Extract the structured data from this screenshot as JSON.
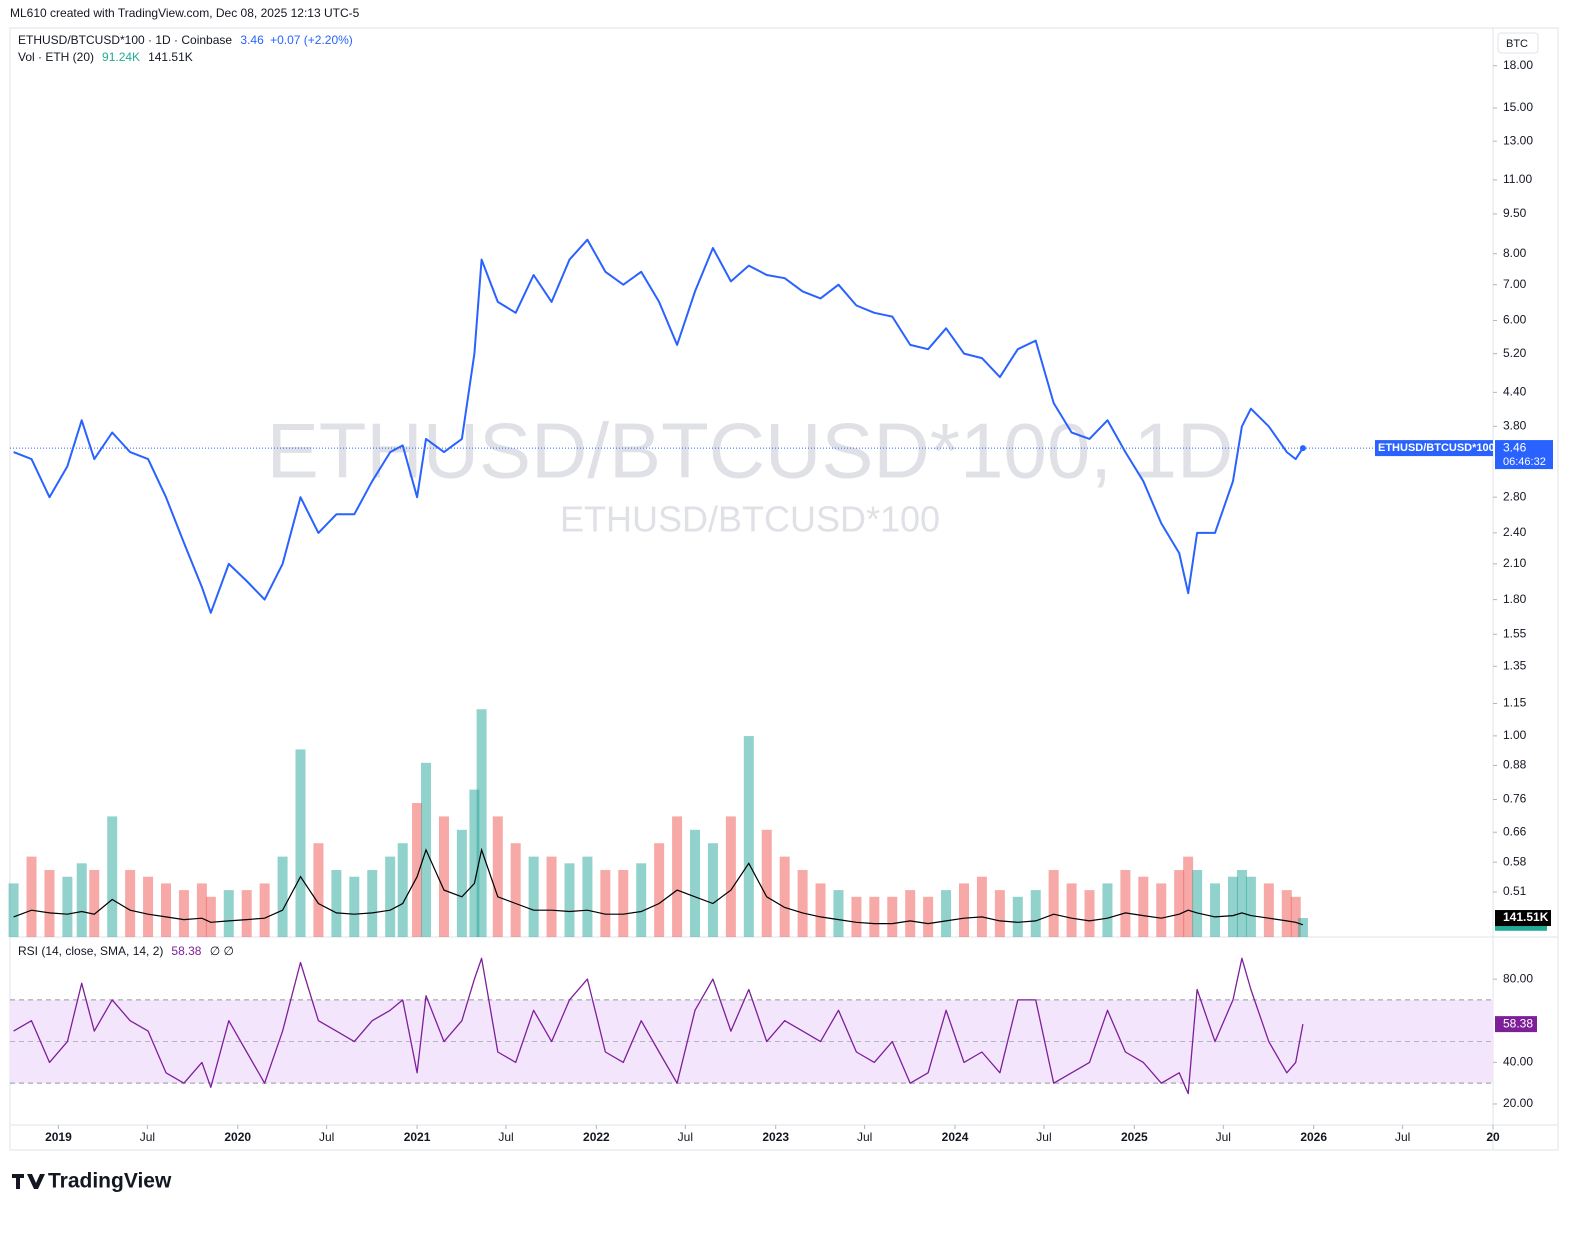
{
  "header": {
    "byline": "ML610 created with TradingView.com, Dec 08, 2025 12:13 UTC-5"
  },
  "watermark": {
    "main": "ETHUSD/BTCUSD*100, 1D",
    "sub": "ETHUSD/BTCUSD*100"
  },
  "price_tag": {
    "symbol": "ETHUSD/BTCUSD*100",
    "countdown": "06:46:32"
  },
  "currency": "BTC",
  "footer": {
    "brand": "TradingView"
  },
  "chart_data": [
    {
      "type": "line",
      "title": "ETHUSD/BTCUSD*100 · 1D · Coinbase",
      "change": "+0.07 (+2.20%)",
      "color": "#2962ff",
      "log_scale": true,
      "x": [
        2018.75,
        2018.85,
        2018.95,
        2019.05,
        2019.13,
        2019.2,
        2019.3,
        2019.4,
        2019.5,
        2019.6,
        2019.7,
        2019.8,
        2019.85,
        2019.95,
        2020.05,
        2020.15,
        2020.25,
        2020.35,
        2020.45,
        2020.55,
        2020.65,
        2020.75,
        2020.85,
        2020.92,
        2021.0,
        2021.05,
        2021.15,
        2021.25,
        2021.32,
        2021.36,
        2021.45,
        2021.55,
        2021.65,
        2021.75,
        2021.85,
        2021.95,
        2022.05,
        2022.15,
        2022.25,
        2022.35,
        2022.45,
        2022.55,
        2022.65,
        2022.75,
        2022.85,
        2022.95,
        2023.05,
        2023.15,
        2023.25,
        2023.35,
        2023.45,
        2023.55,
        2023.65,
        2023.75,
        2023.85,
        2023.95,
        2024.05,
        2024.15,
        2024.25,
        2024.35,
        2024.45,
        2024.55,
        2024.65,
        2024.75,
        2024.85,
        2024.95,
        2025.05,
        2025.15,
        2025.25,
        2025.3,
        2025.35,
        2025.45,
        2025.55,
        2025.6,
        2025.65,
        2025.75,
        2025.85,
        2025.9,
        2025.94
      ],
      "values": [
        3.4,
        3.3,
        2.8,
        3.2,
        3.9,
        3.3,
        3.7,
        3.4,
        3.3,
        2.8,
        2.3,
        1.9,
        1.7,
        2.1,
        1.95,
        1.8,
        2.1,
        2.8,
        2.4,
        2.6,
        2.6,
        3.0,
        3.4,
        3.5,
        2.8,
        3.6,
        3.4,
        3.6,
        5.2,
        7.8,
        6.5,
        6.2,
        7.3,
        6.5,
        7.8,
        8.5,
        7.4,
        7.0,
        7.4,
        6.5,
        5.4,
        6.8,
        8.2,
        7.1,
        7.6,
        7.3,
        7.2,
        6.8,
        6.6,
        7.0,
        6.4,
        6.2,
        6.1,
        5.4,
        5.3,
        5.8,
        5.2,
        5.1,
        4.7,
        5.3,
        5.5,
        4.2,
        3.7,
        3.6,
        3.9,
        3.4,
        3.0,
        2.5,
        2.2,
        1.85,
        2.4,
        2.4,
        3.0,
        3.8,
        4.1,
        3.8,
        3.4,
        3.3,
        3.46
      ],
      "xlim": [
        2018.73,
        2027.0
      ],
      "ylim": [
        0.42,
        21.0
      ],
      "yticks": [
        {
          "value": 18,
          "label": "18.00"
        },
        {
          "value": 15,
          "label": "15.00"
        },
        {
          "value": 13,
          "label": "13.00"
        },
        {
          "value": 11,
          "label": "11.00"
        },
        {
          "value": 9.5,
          "label": "9.50"
        },
        {
          "value": 8,
          "label": "8.00"
        },
        {
          "value": 7,
          "label": "7.00"
        },
        {
          "value": 6,
          "label": "6.00"
        },
        {
          "value": 5.2,
          "label": "5.20"
        },
        {
          "value": 4.4,
          "label": "4.40"
        },
        {
          "value": 3.8,
          "label": "3.80"
        },
        {
          "value": 2.8,
          "label": "2.80"
        },
        {
          "value": 2.4,
          "label": "2.40"
        },
        {
          "value": 2.1,
          "label": "2.10"
        },
        {
          "value": 1.8,
          "label": "1.80"
        },
        {
          "value": 1.55,
          "label": "1.55"
        },
        {
          "value": 1.35,
          "label": "1.35"
        },
        {
          "value": 1.15,
          "label": "1.15"
        },
        {
          "value": 1,
          "label": "1.00"
        },
        {
          "value": 0.88,
          "label": "0.88"
        },
        {
          "value": 0.76,
          "label": "0.76"
        },
        {
          "value": 0.66,
          "label": "0.66"
        },
        {
          "value": 0.58,
          "label": "0.58"
        },
        {
          "value": 0.51,
          "label": "0.51"
        }
      ]
    },
    {
      "type": "bar",
      "title": "Vol · ETH (20)",
      "up_color": "#26a69a",
      "down_color": "#ef5350",
      "sma_color": "#000000",
      "sma_tag_color": "#22ab94",
      "x": [
        2018.75,
        2018.85,
        2018.95,
        2019.05,
        2019.13,
        2019.2,
        2019.3,
        2019.4,
        2019.5,
        2019.6,
        2019.7,
        2019.8,
        2019.85,
        2019.95,
        2020.05,
        2020.15,
        2020.25,
        2020.35,
        2020.45,
        2020.55,
        2020.65,
        2020.75,
        2020.85,
        2020.92,
        2021.0,
        2021.05,
        2021.15,
        2021.25,
        2021.32,
        2021.36,
        2021.45,
        2021.55,
        2021.65,
        2021.75,
        2021.85,
        2021.95,
        2022.05,
        2022.15,
        2022.25,
        2022.35,
        2022.45,
        2022.55,
        2022.65,
        2022.75,
        2022.85,
        2022.95,
        2023.05,
        2023.15,
        2023.25,
        2023.35,
        2023.45,
        2023.55,
        2023.65,
        2023.75,
        2023.85,
        2023.95,
        2024.05,
        2024.15,
        2024.25,
        2024.35,
        2024.45,
        2024.55,
        2024.65,
        2024.75,
        2024.85,
        2024.95,
        2025.05,
        2025.15,
        2025.25,
        2025.3,
        2025.35,
        2025.45,
        2025.55,
        2025.6,
        2025.65,
        2025.75,
        2025.85,
        2025.9,
        2025.94
      ],
      "values": [
        400000,
        600000,
        500000,
        450000,
        550000,
        500000,
        900000,
        500000,
        450000,
        400000,
        350000,
        400000,
        300000,
        350000,
        350000,
        400000,
        600000,
        1400000,
        700000,
        500000,
        450000,
        500000,
        600000,
        700000,
        1000000,
        1300000,
        900000,
        800000,
        1100000,
        1700000,
        900000,
        700000,
        600000,
        600000,
        550000,
        600000,
        500000,
        500000,
        550000,
        700000,
        900000,
        800000,
        700000,
        900000,
        1500000,
        800000,
        600000,
        500000,
        400000,
        350000,
        300000,
        300000,
        300000,
        350000,
        300000,
        350000,
        400000,
        450000,
        350000,
        300000,
        350000,
        500000,
        400000,
        350000,
        400000,
        500000,
        450000,
        400000,
        500000,
        600000,
        500000,
        400000,
        450000,
        500000,
        450000,
        400000,
        350000,
        300000,
        141510
      ],
      "sma_values": [
        150000,
        200000,
        180000,
        170000,
        190000,
        170000,
        280000,
        200000,
        170000,
        150000,
        130000,
        140000,
        110000,
        120000,
        130000,
        140000,
        200000,
        450000,
        250000,
        180000,
        170000,
        180000,
        200000,
        250000,
        450000,
        650000,
        350000,
        300000,
        400000,
        650000,
        300000,
        250000,
        200000,
        200000,
        190000,
        200000,
        170000,
        170000,
        190000,
        250000,
        350000,
        300000,
        250000,
        350000,
        550000,
        300000,
        220000,
        180000,
        150000,
        130000,
        110000,
        100000,
        100000,
        120000,
        100000,
        120000,
        140000,
        150000,
        120000,
        110000,
        120000,
        170000,
        140000,
        120000,
        140000,
        180000,
        160000,
        140000,
        170000,
        200000,
        180000,
        150000,
        160000,
        180000,
        160000,
        140000,
        120000,
        110000,
        91240
      ],
      "last_value_label": "141.51K",
      "sma_last_label": "91.24K",
      "xlim": [
        2018.73,
        2027.0
      ],
      "ylim": [
        0,
        6770000
      ]
    },
    {
      "type": "line",
      "title": "RSI (14, close, SMA, 14, 2)",
      "extra": "∅ ∅",
      "color": "#7e1f9a",
      "band": [
        30,
        70
      ],
      "midline": 50,
      "band_color": "#f3e5fc",
      "x": [
        2018.75,
        2018.85,
        2018.95,
        2019.05,
        2019.13,
        2019.2,
        2019.3,
        2019.4,
        2019.5,
        2019.6,
        2019.7,
        2019.8,
        2019.85,
        2019.95,
        2020.05,
        2020.15,
        2020.25,
        2020.35,
        2020.45,
        2020.55,
        2020.65,
        2020.75,
        2020.85,
        2020.92,
        2021.0,
        2021.05,
        2021.15,
        2021.25,
        2021.32,
        2021.36,
        2021.45,
        2021.55,
        2021.65,
        2021.75,
        2021.85,
        2021.95,
        2022.05,
        2022.15,
        2022.25,
        2022.35,
        2022.45,
        2022.55,
        2022.65,
        2022.75,
        2022.85,
        2022.95,
        2023.05,
        2023.15,
        2023.25,
        2023.35,
        2023.45,
        2023.55,
        2023.65,
        2023.75,
        2023.85,
        2023.95,
        2024.05,
        2024.15,
        2024.25,
        2024.35,
        2024.45,
        2024.55,
        2024.65,
        2024.75,
        2024.85,
        2024.95,
        2025.05,
        2025.15,
        2025.25,
        2025.3,
        2025.35,
        2025.45,
        2025.55,
        2025.6,
        2025.65,
        2025.75,
        2025.85,
        2025.9,
        2025.94
      ],
      "values": [
        55,
        60,
        40,
        50,
        78,
        55,
        70,
        60,
        55,
        35,
        30,
        40,
        28,
        60,
        45,
        30,
        55,
        88,
        60,
        55,
        50,
        60,
        65,
        70,
        35,
        72,
        50,
        60,
        80,
        90,
        45,
        40,
        65,
        50,
        70,
        80,
        45,
        40,
        60,
        45,
        30,
        65,
        80,
        55,
        75,
        50,
        60,
        55,
        50,
        65,
        45,
        40,
        50,
        30,
        35,
        65,
        40,
        45,
        35,
        70,
        70,
        30,
        35,
        40,
        65,
        45,
        40,
        30,
        35,
        25,
        75,
        50,
        70,
        90,
        75,
        50,
        35,
        40,
        58.38
      ],
      "xlim": [
        2018.73,
        2027.0
      ],
      "ylim": [
        9.9,
        98.8
      ],
      "yticks": [
        {
          "value": 80,
          "label": "80.00"
        },
        {
          "value": 40,
          "label": "40.00"
        },
        {
          "value": 20,
          "label": "20.00"
        }
      ],
      "xticks": [
        2019,
        {
          "value": 2019.496,
          "label": "Jul"
        },
        2020,
        {
          "value": 2020.496,
          "label": "Jul"
        },
        2021,
        {
          "value": 2021.496,
          "label": "Jul"
        },
        2022,
        {
          "value": 2022.496,
          "label": "Jul"
        },
        2023,
        {
          "value": 2023.496,
          "label": "Jul"
        },
        2024,
        {
          "value": 2024.496,
          "label": "Jul"
        },
        2025,
        {
          "value": 2025.496,
          "label": "Jul"
        },
        2026,
        {
          "value": 2026.496,
          "label": "Jul"
        },
        {
          "value": 2027,
          "label": "20"
        }
      ]
    }
  ]
}
